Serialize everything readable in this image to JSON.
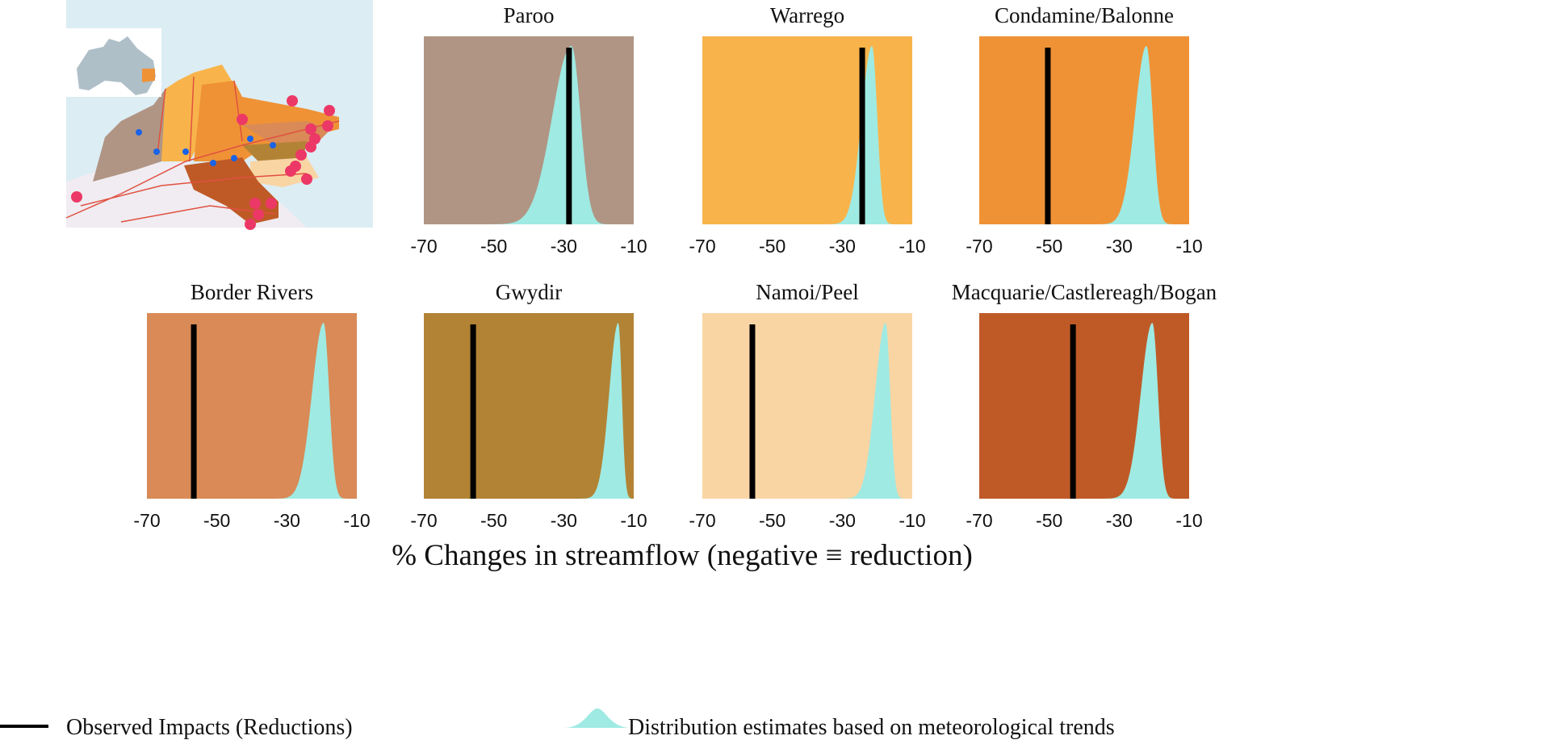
{
  "chart_data": {
    "type": "area",
    "xlabel": "% Changes in streamflow (negative ≡ reduction)",
    "xlim": [
      -70,
      -10
    ],
    "xticks": [
      "-70",
      "-50",
      "-30",
      "-10"
    ],
    "grid": false,
    "legend": {
      "placement": "bottom",
      "observed_label": "Observed Impacts (Reductions)",
      "distribution_label": "Distribution estimates based on meteorological trends"
    },
    "colors": {
      "observed": "#000000",
      "distribution": "#9feae3"
    },
    "panels": [
      {
        "title": "Paroo",
        "background": "#b09584",
        "observed": -28.5,
        "dist_mode": -27.8,
        "dist_sd_left": 5.5,
        "dist_sd_right": 2.6
      },
      {
        "title": "Warrego",
        "background": "#f8b44b",
        "observed": -24.3,
        "dist_mode": -21.5,
        "dist_sd_left": 3.0,
        "dist_sd_right": 1.5
      },
      {
        "title": "Condamine/Balonne",
        "background": "#ef9236",
        "observed": -50.4,
        "dist_mode": -22.2,
        "dist_sd_left": 3.3,
        "dist_sd_right": 1.8
      },
      {
        "title": "Border Rivers",
        "background": "#d98a56",
        "observed": -56.6,
        "dist_mode": -19.5,
        "dist_sd_left": 3.3,
        "dist_sd_right": 1.6
      },
      {
        "title": "Gwydir",
        "background": "#b28335",
        "observed": -55.9,
        "dist_mode": -14.4,
        "dist_sd_left": 2.6,
        "dist_sd_right": 1.0
      },
      {
        "title": "Namoi/Peel",
        "background": "#f9d5a4",
        "observed": -55.7,
        "dist_mode": -17.6,
        "dist_sd_left": 3.0,
        "dist_sd_right": 1.3
      },
      {
        "title": "Macquarie/Castlereagh/Bogan",
        "background": "#bf5a27",
        "observed": -43.2,
        "dist_mode": -20.5,
        "dist_sd_left": 3.3,
        "dist_sd_right": 1.6
      }
    ]
  },
  "map": {
    "sea_color": "#dcedf4",
    "site_color_large": "#ec3866",
    "site_color_small": "#1a63e6"
  }
}
